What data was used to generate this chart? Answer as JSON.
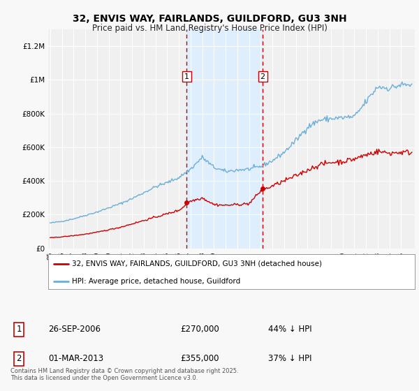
{
  "title": "32, ENVIS WAY, FAIRLANDS, GUILDFORD, GU3 3NH",
  "subtitle": "Price paid vs. HM Land Registry's House Price Index (HPI)",
  "title_fontsize": 10,
  "subtitle_fontsize": 8.5,
  "ylim": [
    0,
    1300000
  ],
  "yticks": [
    0,
    200000,
    400000,
    600000,
    800000,
    1000000,
    1200000
  ],
  "background_color": "#f8f8f8",
  "plot_bg_color": "#f0f0f0",
  "grid_color": "#ffffff",
  "hpi_color": "#6baed6",
  "price_color": "#cc0000",
  "shade_color": "#ddeeff",
  "dashed_color": "#cc0000",
  "marker1_year_idx": 11,
  "marker2_year_idx": 18,
  "sale1_price": 270000,
  "sale2_price": 355000,
  "sale1_label": "1",
  "sale2_label": "2",
  "sale1_date": "26-SEP-2006",
  "sale2_date": "01-MAR-2013",
  "sale1_pct": "44% ↓ HPI",
  "sale2_pct": "37% ↓ HPI",
  "legend1": "32, ENVIS WAY, FAIRLANDS, GUILDFORD, GU3 3NH (detached house)",
  "legend2": "HPI: Average price, detached house, Guildford",
  "footer": "Contains HM Land Registry data © Crown copyright and database right 2025.\nThis data is licensed under the Open Government Licence v3.0."
}
